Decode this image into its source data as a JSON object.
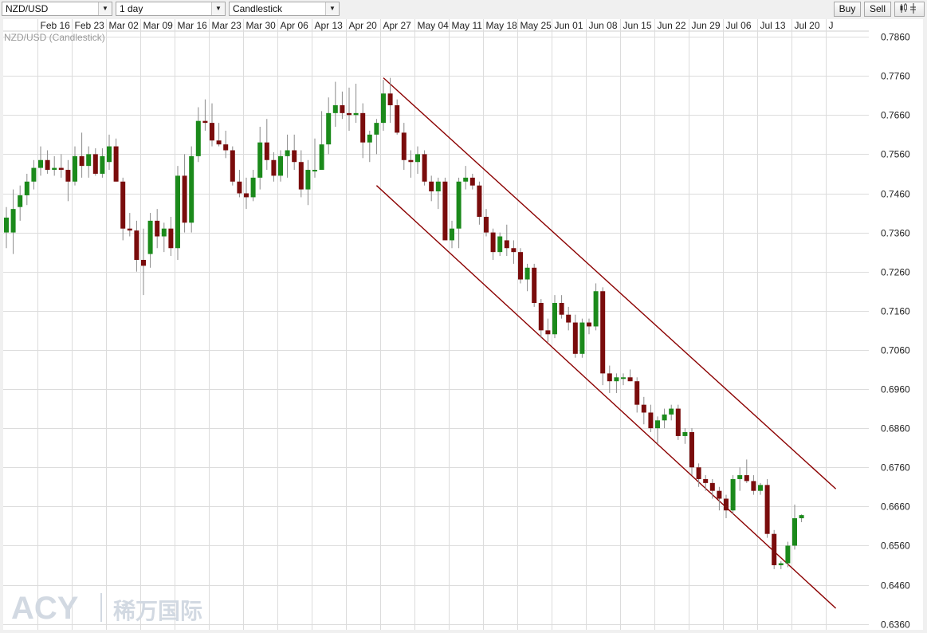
{
  "toolbar": {
    "symbol": "NZD/USD",
    "interval": "1 day",
    "chart_type": "Candlestick",
    "buy_label": "Buy",
    "sell_label": "Sell",
    "indicator_icon": "candles-icon"
  },
  "chart_title": "NZD/USD (Candlestick)",
  "watermark": {
    "latin": "ACY",
    "cjk": "稀万国际"
  },
  "colors": {
    "up": "#1b8a1b",
    "down": "#7a0c0c",
    "channel": "#8b0000",
    "grid": "#dcdcdc"
  },
  "chart_data": {
    "type": "candlestick",
    "symbol": "NZD/USD",
    "interval": "1 day",
    "ylim": [
      0.6345,
      0.7905
    ],
    "yticks": [
      "0.7860",
      "0.7760",
      "0.7660",
      "0.7560",
      "0.7460",
      "0.7360",
      "0.7260",
      "0.7160",
      "0.7060",
      "0.6960",
      "0.6860",
      "0.6760",
      "0.6660",
      "0.6560",
      "0.6460",
      "0.6360"
    ],
    "xticks": [
      "Feb 16",
      "Feb 23",
      "Mar 02",
      "Mar 09",
      "Mar 16",
      "Mar 23",
      "Mar 30",
      "Apr 06",
      "Apr 13",
      "Apr 20",
      "Apr 27",
      "May 04",
      "May 11",
      "May 18",
      "May 25",
      "Jun 01",
      "Jun 08",
      "Jun 15",
      "Jun 22",
      "Jun 29",
      "Jul 06",
      "Jul 13",
      "Jul 20",
      "J"
    ],
    "first_date": "Feb 09",
    "candles": [
      {
        "o": 0.736,
        "h": 0.7425,
        "l": 0.732,
        "c": 0.7398
      },
      {
        "o": 0.736,
        "h": 0.747,
        "l": 0.7305,
        "c": 0.742
      },
      {
        "o": 0.7425,
        "h": 0.748,
        "l": 0.739,
        "c": 0.7455
      },
      {
        "o": 0.7455,
        "h": 0.751,
        "l": 0.743,
        "c": 0.749
      },
      {
        "o": 0.749,
        "h": 0.7545,
        "l": 0.747,
        "c": 0.7525
      },
      {
        "o": 0.7525,
        "h": 0.758,
        "l": 0.7505,
        "c": 0.7545
      },
      {
        "o": 0.7545,
        "h": 0.757,
        "l": 0.751,
        "c": 0.752
      },
      {
        "o": 0.752,
        "h": 0.7555,
        "l": 0.7505,
        "c": 0.7525
      },
      {
        "o": 0.7525,
        "h": 0.756,
        "l": 0.75,
        "c": 0.752
      },
      {
        "o": 0.752,
        "h": 0.7545,
        "l": 0.744,
        "c": 0.749
      },
      {
        "o": 0.749,
        "h": 0.758,
        "l": 0.748,
        "c": 0.7555
      },
      {
        "o": 0.7555,
        "h": 0.7615,
        "l": 0.75,
        "c": 0.753
      },
      {
        "o": 0.753,
        "h": 0.758,
        "l": 0.75,
        "c": 0.756
      },
      {
        "o": 0.756,
        "h": 0.7575,
        "l": 0.7505,
        "c": 0.751
      },
      {
        "o": 0.751,
        "h": 0.7575,
        "l": 0.75,
        "c": 0.7555
      },
      {
        "o": 0.754,
        "h": 0.761,
        "l": 0.752,
        "c": 0.758
      },
      {
        "o": 0.758,
        "h": 0.76,
        "l": 0.749,
        "c": 0.749
      },
      {
        "o": 0.749,
        "h": 0.75,
        "l": 0.734,
        "c": 0.737
      },
      {
        "o": 0.737,
        "h": 0.741,
        "l": 0.735,
        "c": 0.7365
      },
      {
        "o": 0.7365,
        "h": 0.739,
        "l": 0.726,
        "c": 0.729
      },
      {
        "o": 0.729,
        "h": 0.737,
        "l": 0.72,
        "c": 0.7275
      },
      {
        "o": 0.7305,
        "h": 0.741,
        "l": 0.727,
        "c": 0.739
      },
      {
        "o": 0.739,
        "h": 0.742,
        "l": 0.732,
        "c": 0.735
      },
      {
        "o": 0.735,
        "h": 0.7385,
        "l": 0.731,
        "c": 0.737
      },
      {
        "o": 0.737,
        "h": 0.74,
        "l": 0.73,
        "c": 0.732
      },
      {
        "o": 0.732,
        "h": 0.753,
        "l": 0.729,
        "c": 0.7505
      },
      {
        "o": 0.7505,
        "h": 0.756,
        "l": 0.736,
        "c": 0.7385
      },
      {
        "o": 0.7385,
        "h": 0.758,
        "l": 0.736,
        "c": 0.7555
      },
      {
        "o": 0.7555,
        "h": 0.768,
        "l": 0.754,
        "c": 0.7645
      },
      {
        "o": 0.7645,
        "h": 0.77,
        "l": 0.762,
        "c": 0.764
      },
      {
        "o": 0.764,
        "h": 0.769,
        "l": 0.758,
        "c": 0.7595
      },
      {
        "o": 0.7595,
        "h": 0.764,
        "l": 0.758,
        "c": 0.7585
      },
      {
        "o": 0.7585,
        "h": 0.762,
        "l": 0.755,
        "c": 0.757
      },
      {
        "o": 0.757,
        "h": 0.758,
        "l": 0.748,
        "c": 0.749
      },
      {
        "o": 0.749,
        "h": 0.752,
        "l": 0.745,
        "c": 0.746
      },
      {
        "o": 0.746,
        "h": 0.75,
        "l": 0.742,
        "c": 0.745
      },
      {
        "o": 0.745,
        "h": 0.752,
        "l": 0.744,
        "c": 0.75
      },
      {
        "o": 0.75,
        "h": 0.763,
        "l": 0.747,
        "c": 0.759
      },
      {
        "o": 0.759,
        "h": 0.765,
        "l": 0.752,
        "c": 0.7545
      },
      {
        "o": 0.7545,
        "h": 0.7565,
        "l": 0.749,
        "c": 0.7505
      },
      {
        "o": 0.7505,
        "h": 0.757,
        "l": 0.749,
        "c": 0.7555
      },
      {
        "o": 0.7555,
        "h": 0.761,
        "l": 0.75,
        "c": 0.757
      },
      {
        "o": 0.757,
        "h": 0.761,
        "l": 0.752,
        "c": 0.754
      },
      {
        "o": 0.754,
        "h": 0.757,
        "l": 0.745,
        "c": 0.747
      },
      {
        "o": 0.747,
        "h": 0.7545,
        "l": 0.743,
        "c": 0.752
      },
      {
        "o": 0.752,
        "h": 0.76,
        "l": 0.75,
        "c": 0.752
      },
      {
        "o": 0.752,
        "h": 0.767,
        "l": 0.752,
        "c": 0.7585
      },
      {
        "o": 0.7585,
        "h": 0.7705,
        "l": 0.756,
        "c": 0.7665
      },
      {
        "o": 0.7665,
        "h": 0.7745,
        "l": 0.763,
        "c": 0.7685
      },
      {
        "o": 0.7685,
        "h": 0.772,
        "l": 0.765,
        "c": 0.7665
      },
      {
        "o": 0.7665,
        "h": 0.773,
        "l": 0.762,
        "c": 0.766
      },
      {
        "o": 0.766,
        "h": 0.774,
        "l": 0.764,
        "c": 0.7665
      },
      {
        "o": 0.7665,
        "h": 0.769,
        "l": 0.755,
        "c": 0.759
      },
      {
        "o": 0.759,
        "h": 0.762,
        "l": 0.754,
        "c": 0.761
      },
      {
        "o": 0.761,
        "h": 0.765,
        "l": 0.756,
        "c": 0.764
      },
      {
        "o": 0.764,
        "h": 0.775,
        "l": 0.762,
        "c": 0.7715
      },
      {
        "o": 0.7715,
        "h": 0.7755,
        "l": 0.764,
        "c": 0.7685
      },
      {
        "o": 0.7685,
        "h": 0.77,
        "l": 0.761,
        "c": 0.7615
      },
      {
        "o": 0.7615,
        "h": 0.764,
        "l": 0.752,
        "c": 0.7545
      },
      {
        "o": 0.7545,
        "h": 0.757,
        "l": 0.75,
        "c": 0.754
      },
      {
        "o": 0.754,
        "h": 0.758,
        "l": 0.751,
        "c": 0.756
      },
      {
        "o": 0.756,
        "h": 0.757,
        "l": 0.748,
        "c": 0.749
      },
      {
        "o": 0.749,
        "h": 0.7505,
        "l": 0.744,
        "c": 0.7465
      },
      {
        "o": 0.7465,
        "h": 0.75,
        "l": 0.742,
        "c": 0.749
      },
      {
        "o": 0.749,
        "h": 0.75,
        "l": 0.734,
        "c": 0.734
      },
      {
        "o": 0.734,
        "h": 0.739,
        "l": 0.732,
        "c": 0.737
      },
      {
        "o": 0.737,
        "h": 0.75,
        "l": 0.732,
        "c": 0.749
      },
      {
        "o": 0.749,
        "h": 0.753,
        "l": 0.747,
        "c": 0.75
      },
      {
        "o": 0.75,
        "h": 0.751,
        "l": 0.747,
        "c": 0.748
      },
      {
        "o": 0.748,
        "h": 0.749,
        "l": 0.738,
        "c": 0.74
      },
      {
        "o": 0.74,
        "h": 0.742,
        "l": 0.735,
        "c": 0.736
      },
      {
        "o": 0.736,
        "h": 0.737,
        "l": 0.729,
        "c": 0.731
      },
      {
        "o": 0.731,
        "h": 0.736,
        "l": 0.73,
        "c": 0.735
      },
      {
        "o": 0.734,
        "h": 0.738,
        "l": 0.73,
        "c": 0.732
      },
      {
        "o": 0.732,
        "h": 0.734,
        "l": 0.728,
        "c": 0.731
      },
      {
        "o": 0.731,
        "h": 0.732,
        "l": 0.723,
        "c": 0.724
      },
      {
        "o": 0.724,
        "h": 0.728,
        "l": 0.721,
        "c": 0.727
      },
      {
        "o": 0.727,
        "h": 0.728,
        "l": 0.717,
        "c": 0.718
      },
      {
        "o": 0.718,
        "h": 0.719,
        "l": 0.709,
        "c": 0.711
      },
      {
        "o": 0.711,
        "h": 0.714,
        "l": 0.708,
        "c": 0.71
      },
      {
        "o": 0.71,
        "h": 0.72,
        "l": 0.709,
        "c": 0.718
      },
      {
        "o": 0.718,
        "h": 0.72,
        "l": 0.714,
        "c": 0.715
      },
      {
        "o": 0.715,
        "h": 0.717,
        "l": 0.711,
        "c": 0.713
      },
      {
        "o": 0.713,
        "h": 0.715,
        "l": 0.704,
        "c": 0.705
      },
      {
        "o": 0.705,
        "h": 0.714,
        "l": 0.704,
        "c": 0.713
      },
      {
        "o": 0.713,
        "h": 0.714,
        "l": 0.71,
        "c": 0.712
      },
      {
        "o": 0.712,
        "h": 0.723,
        "l": 0.711,
        "c": 0.721
      },
      {
        "o": 0.721,
        "h": 0.722,
        "l": 0.697,
        "c": 0.7
      },
      {
        "o": 0.7,
        "h": 0.702,
        "l": 0.695,
        "c": 0.698
      },
      {
        "o": 0.698,
        "h": 0.7,
        "l": 0.695,
        "c": 0.699
      },
      {
        "o": 0.699,
        "h": 0.7,
        "l": 0.697,
        "c": 0.699
      },
      {
        "o": 0.699,
        "h": 0.701,
        "l": 0.698,
        "c": 0.698
      },
      {
        "o": 0.698,
        "h": 0.699,
        "l": 0.69,
        "c": 0.692
      },
      {
        "o": 0.692,
        "h": 0.694,
        "l": 0.687,
        "c": 0.69
      },
      {
        "o": 0.69,
        "h": 0.692,
        "l": 0.685,
        "c": 0.686
      },
      {
        "o": 0.686,
        "h": 0.689,
        "l": 0.682,
        "c": 0.688
      },
      {
        "o": 0.688,
        "h": 0.691,
        "l": 0.686,
        "c": 0.6895
      },
      {
        "o": 0.6895,
        "h": 0.692,
        "l": 0.688,
        "c": 0.691
      },
      {
        "o": 0.691,
        "h": 0.692,
        "l": 0.683,
        "c": 0.684
      },
      {
        "o": 0.684,
        "h": 0.686,
        "l": 0.682,
        "c": 0.685
      },
      {
        "o": 0.685,
        "h": 0.686,
        "l": 0.674,
        "c": 0.676
      },
      {
        "o": 0.676,
        "h": 0.677,
        "l": 0.671,
        "c": 0.673
      },
      {
        "o": 0.673,
        "h": 0.674,
        "l": 0.67,
        "c": 0.672
      },
      {
        "o": 0.672,
        "h": 0.673,
        "l": 0.668,
        "c": 0.67
      },
      {
        "o": 0.67,
        "h": 0.671,
        "l": 0.665,
        "c": 0.668
      },
      {
        "o": 0.668,
        "h": 0.669,
        "l": 0.663,
        "c": 0.665
      },
      {
        "o": 0.665,
        "h": 0.674,
        "l": 0.664,
        "c": 0.673
      },
      {
        "o": 0.673,
        "h": 0.676,
        "l": 0.67,
        "c": 0.674
      },
      {
        "o": 0.674,
        "h": 0.678,
        "l": 0.672,
        "c": 0.6725
      },
      {
        "o": 0.6725,
        "h": 0.674,
        "l": 0.669,
        "c": 0.67
      },
      {
        "o": 0.67,
        "h": 0.672,
        "l": 0.669,
        "c": 0.6715
      },
      {
        "o": 0.6715,
        "h": 0.673,
        "l": 0.658,
        "c": 0.659
      },
      {
        "o": 0.659,
        "h": 0.66,
        "l": 0.65,
        "c": 0.651
      },
      {
        "o": 0.651,
        "h": 0.652,
        "l": 0.65,
        "c": 0.6515
      },
      {
        "o": 0.6515,
        "h": 0.657,
        "l": 0.6505,
        "c": 0.656
      },
      {
        "o": 0.656,
        "h": 0.6665,
        "l": 0.655,
        "c": 0.663
      },
      {
        "o": 0.663,
        "h": 0.664,
        "l": 0.662,
        "c": 0.6638
      }
    ],
    "trendlines": [
      {
        "name": "channel-upper",
        "from": {
          "candle": 55,
          "value": 0.7755
        },
        "to": {
          "candle": 121,
          "value": 0.6705
        }
      },
      {
        "name": "channel-lower",
        "from": {
          "candle": 54,
          "value": 0.748
        },
        "to": {
          "candle": 121,
          "value": 0.64
        }
      }
    ]
  }
}
